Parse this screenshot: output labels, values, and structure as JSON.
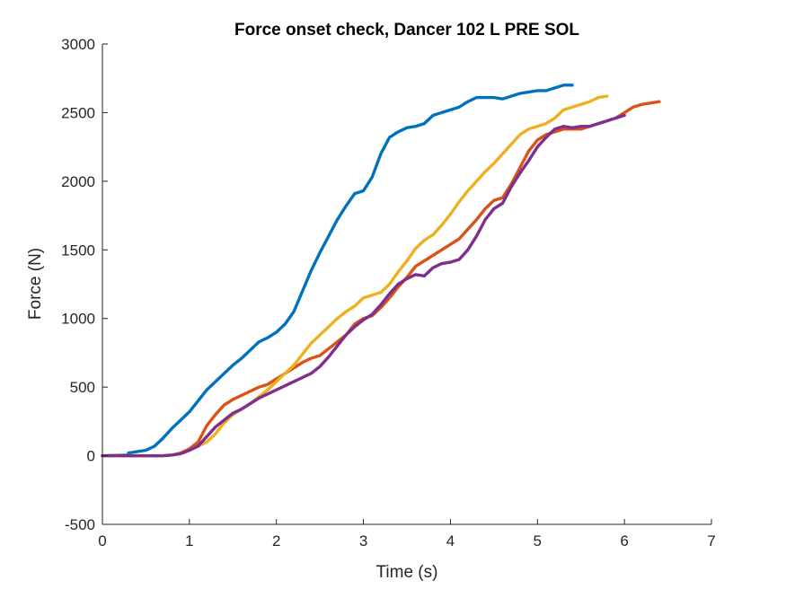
{
  "chart_data": {
    "type": "scatter",
    "title": "Force onset check, Dancer 102 L PRE SOL",
    "xlabel": "Time (s)",
    "ylabel": "Force (N)",
    "xlim": [
      0,
      7
    ],
    "ylim": [
      -500,
      3000
    ],
    "xticks": [
      0,
      1,
      2,
      3,
      4,
      5,
      6,
      7
    ],
    "yticks": [
      -500,
      0,
      500,
      1000,
      1500,
      2000,
      2500,
      3000
    ],
    "grid": false,
    "legend": "none",
    "series": [
      {
        "color": "#0072BD",
        "points": [
          [
            0,
            0
          ],
          [
            0.3,
            5
          ],
          [
            0.3,
            20
          ],
          [
            0.5,
            40
          ],
          [
            0.6,
            70
          ],
          [
            0.7,
            130
          ],
          [
            0.8,
            200
          ],
          [
            0.9,
            260
          ],
          [
            1.0,
            320
          ],
          [
            1.1,
            400
          ],
          [
            1.2,
            480
          ],
          [
            1.3,
            540
          ],
          [
            1.4,
            600
          ],
          [
            1.5,
            660
          ],
          [
            1.6,
            710
          ],
          [
            1.7,
            770
          ],
          [
            1.8,
            830
          ],
          [
            1.9,
            860
          ],
          [
            2.0,
            900
          ],
          [
            2.1,
            960
          ],
          [
            2.2,
            1050
          ],
          [
            2.3,
            1200
          ],
          [
            2.4,
            1350
          ],
          [
            2.5,
            1480
          ],
          [
            2.6,
            1600
          ],
          [
            2.7,
            1720
          ],
          [
            2.8,
            1820
          ],
          [
            2.9,
            1910
          ],
          [
            3.0,
            1930
          ],
          [
            3.1,
            2030
          ],
          [
            3.2,
            2200
          ],
          [
            3.3,
            2320
          ],
          [
            3.4,
            2360
          ],
          [
            3.5,
            2390
          ],
          [
            3.6,
            2400
          ],
          [
            3.7,
            2420
          ],
          [
            3.8,
            2480
          ],
          [
            3.9,
            2500
          ],
          [
            4.0,
            2520
          ],
          [
            4.1,
            2540
          ],
          [
            4.2,
            2580
          ],
          [
            4.3,
            2610
          ],
          [
            4.4,
            2610
          ],
          [
            4.5,
            2610
          ],
          [
            4.6,
            2600
          ],
          [
            4.7,
            2620
          ],
          [
            4.8,
            2640
          ],
          [
            4.9,
            2650
          ],
          [
            5.0,
            2660
          ],
          [
            5.1,
            2660
          ],
          [
            5.2,
            2680
          ],
          [
            5.3,
            2700
          ],
          [
            5.4,
            2700
          ]
        ]
      },
      {
        "color": "#D95319",
        "points": [
          [
            0,
            0
          ],
          [
            0.5,
            0
          ],
          [
            0.7,
            0
          ],
          [
            0.8,
            5
          ],
          [
            0.9,
            20
          ],
          [
            1.0,
            50
          ],
          [
            1.1,
            100
          ],
          [
            1.2,
            220
          ],
          [
            1.3,
            300
          ],
          [
            1.4,
            370
          ],
          [
            1.5,
            410
          ],
          [
            1.6,
            440
          ],
          [
            1.7,
            470
          ],
          [
            1.8,
            500
          ],
          [
            1.9,
            520
          ],
          [
            2.0,
            560
          ],
          [
            2.1,
            600
          ],
          [
            2.2,
            640
          ],
          [
            2.3,
            680
          ],
          [
            2.4,
            710
          ],
          [
            2.5,
            730
          ],
          [
            2.6,
            780
          ],
          [
            2.7,
            830
          ],
          [
            2.8,
            880
          ],
          [
            2.9,
            960
          ],
          [
            3.0,
            1000
          ],
          [
            3.1,
            1020
          ],
          [
            3.2,
            1080
          ],
          [
            3.3,
            1150
          ],
          [
            3.4,
            1230
          ],
          [
            3.5,
            1300
          ],
          [
            3.6,
            1380
          ],
          [
            3.7,
            1420
          ],
          [
            3.8,
            1460
          ],
          [
            3.9,
            1500
          ],
          [
            4.0,
            1540
          ],
          [
            4.1,
            1580
          ],
          [
            4.2,
            1650
          ],
          [
            4.3,
            1720
          ],
          [
            4.4,
            1800
          ],
          [
            4.5,
            1860
          ],
          [
            4.6,
            1880
          ],
          [
            4.7,
            1980
          ],
          [
            4.8,
            2100
          ],
          [
            4.9,
            2220
          ],
          [
            5.0,
            2300
          ],
          [
            5.1,
            2340
          ],
          [
            5.2,
            2360
          ],
          [
            5.3,
            2380
          ],
          [
            5.4,
            2380
          ],
          [
            5.5,
            2380
          ],
          [
            5.6,
            2400
          ],
          [
            5.7,
            2420
          ],
          [
            5.8,
            2440
          ],
          [
            5.9,
            2460
          ],
          [
            6.0,
            2500
          ],
          [
            6.1,
            2540
          ],
          [
            6.2,
            2560
          ],
          [
            6.3,
            2570
          ],
          [
            6.4,
            2580
          ]
        ]
      },
      {
        "color": "#EDB120",
        "points": [
          [
            0,
            0
          ],
          [
            0.7,
            0
          ],
          [
            0.8,
            5
          ],
          [
            0.9,
            15
          ],
          [
            1.0,
            40
          ],
          [
            1.1,
            70
          ],
          [
            1.2,
            100
          ],
          [
            1.3,
            160
          ],
          [
            1.4,
            240
          ],
          [
            1.5,
            300
          ],
          [
            1.6,
            340
          ],
          [
            1.7,
            380
          ],
          [
            1.8,
            430
          ],
          [
            1.9,
            480
          ],
          [
            2.0,
            540
          ],
          [
            2.1,
            600
          ],
          [
            2.2,
            660
          ],
          [
            2.3,
            740
          ],
          [
            2.4,
            820
          ],
          [
            2.5,
            880
          ],
          [
            2.6,
            940
          ],
          [
            2.7,
            1000
          ],
          [
            2.8,
            1050
          ],
          [
            2.9,
            1090
          ],
          [
            3.0,
            1150
          ],
          [
            3.1,
            1170
          ],
          [
            3.2,
            1190
          ],
          [
            3.3,
            1250
          ],
          [
            3.4,
            1340
          ],
          [
            3.5,
            1420
          ],
          [
            3.6,
            1510
          ],
          [
            3.7,
            1570
          ],
          [
            3.8,
            1610
          ],
          [
            3.9,
            1680
          ],
          [
            4.0,
            1760
          ],
          [
            4.1,
            1850
          ],
          [
            4.2,
            1930
          ],
          [
            4.3,
            2000
          ],
          [
            4.4,
            2070
          ],
          [
            4.5,
            2130
          ],
          [
            4.6,
            2200
          ],
          [
            4.7,
            2270
          ],
          [
            4.8,
            2340
          ],
          [
            4.9,
            2380
          ],
          [
            5.0,
            2400
          ],
          [
            5.1,
            2420
          ],
          [
            5.2,
            2460
          ],
          [
            5.3,
            2520
          ],
          [
            5.4,
            2540
          ],
          [
            5.5,
            2560
          ],
          [
            5.6,
            2580
          ],
          [
            5.7,
            2610
          ],
          [
            5.8,
            2620
          ]
        ]
      },
      {
        "color": "#7E2F8E",
        "points": [
          [
            0,
            0
          ],
          [
            0.7,
            0
          ],
          [
            0.8,
            5
          ],
          [
            0.9,
            15
          ],
          [
            1.0,
            40
          ],
          [
            1.1,
            70
          ],
          [
            1.2,
            140
          ],
          [
            1.3,
            210
          ],
          [
            1.4,
            260
          ],
          [
            1.5,
            310
          ],
          [
            1.6,
            340
          ],
          [
            1.7,
            380
          ],
          [
            1.8,
            420
          ],
          [
            1.9,
            450
          ],
          [
            2.0,
            480
          ],
          [
            2.1,
            510
          ],
          [
            2.2,
            540
          ],
          [
            2.3,
            570
          ],
          [
            2.4,
            600
          ],
          [
            2.5,
            650
          ],
          [
            2.6,
            720
          ],
          [
            2.7,
            800
          ],
          [
            2.8,
            880
          ],
          [
            2.9,
            940
          ],
          [
            3.0,
            990
          ],
          [
            3.1,
            1030
          ],
          [
            3.2,
            1100
          ],
          [
            3.3,
            1180
          ],
          [
            3.4,
            1250
          ],
          [
            3.5,
            1290
          ],
          [
            3.6,
            1320
          ],
          [
            3.7,
            1310
          ],
          [
            3.8,
            1370
          ],
          [
            3.9,
            1400
          ],
          [
            4.0,
            1410
          ],
          [
            4.1,
            1430
          ],
          [
            4.2,
            1500
          ],
          [
            4.3,
            1600
          ],
          [
            4.4,
            1720
          ],
          [
            4.5,
            1800
          ],
          [
            4.6,
            1840
          ],
          [
            4.7,
            1960
          ],
          [
            4.8,
            2060
          ],
          [
            4.9,
            2150
          ],
          [
            5.0,
            2250
          ],
          [
            5.1,
            2320
          ],
          [
            5.2,
            2380
          ],
          [
            5.3,
            2400
          ],
          [
            5.4,
            2390
          ],
          [
            5.5,
            2400
          ],
          [
            5.6,
            2400
          ],
          [
            5.7,
            2420
          ],
          [
            5.8,
            2440
          ],
          [
            5.9,
            2460
          ],
          [
            6.0,
            2480
          ]
        ]
      }
    ]
  }
}
